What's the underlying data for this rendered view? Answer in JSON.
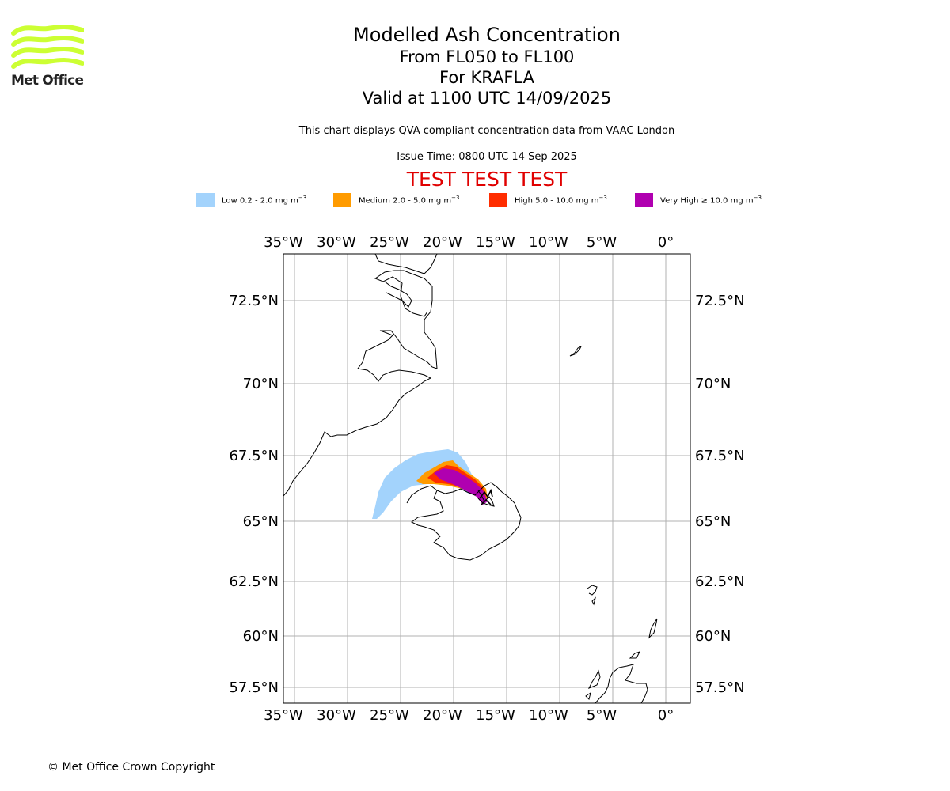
{
  "logo": {
    "text": "Met Office",
    "color": "#ccff33"
  },
  "title": {
    "line1": "Modelled Ash Concentration",
    "line2": "From FL050 to FL100",
    "line3": "For KRAFLA",
    "line4": "Valid at 1100 UTC 14/09/2025"
  },
  "subtitle": "This chart displays QVA compliant concentration data from VAAC London",
  "issue_time": "Issue Time: 0800 UTC 14 Sep 2025",
  "test_banner": "TEST TEST TEST",
  "test_color": "#e00000",
  "legend": [
    {
      "label": "Low 0.2 - 2.0 mg m",
      "unit_exp": "−3",
      "color": "#a3d3fc"
    },
    {
      "label": "Medium 2.0 - 5.0 mg m",
      "unit_exp": "−3",
      "color": "#ff9b00"
    },
    {
      "label": "High 5.0 - 10.0 mg m",
      "unit_exp": "−3",
      "color": "#ff2d00"
    },
    {
      "label": "Very High  ≥  10.0 mg m",
      "unit_exp": "−3",
      "color": "#b000b0"
    }
  ],
  "map": {
    "lon_ticks": [
      {
        "value": -35,
        "label": "35°W"
      },
      {
        "value": -30,
        "label": "30°W"
      },
      {
        "value": -25,
        "label": "25°W"
      },
      {
        "value": -20,
        "label": "20°W"
      },
      {
        "value": -15,
        "label": "15°W"
      },
      {
        "value": -10,
        "label": "10°W"
      },
      {
        "value": -5,
        "label": "5°W"
      },
      {
        "value": 0,
        "label": "0°"
      }
    ],
    "lat_ticks": [
      {
        "value": 72.5,
        "label": "72.5°N"
      },
      {
        "value": 70,
        "label": "70°N"
      },
      {
        "value": 67.5,
        "label": "67.5°N"
      },
      {
        "value": 65,
        "label": "65°N"
      },
      {
        "value": 62.5,
        "label": "62.5°N"
      },
      {
        "value": 60,
        "label": "60°N"
      },
      {
        "value": 57.5,
        "label": "57.5°N"
      }
    ],
    "grid": true,
    "volcano": "KRAFLA"
  },
  "copyright": "© Met Office Crown Copyright"
}
